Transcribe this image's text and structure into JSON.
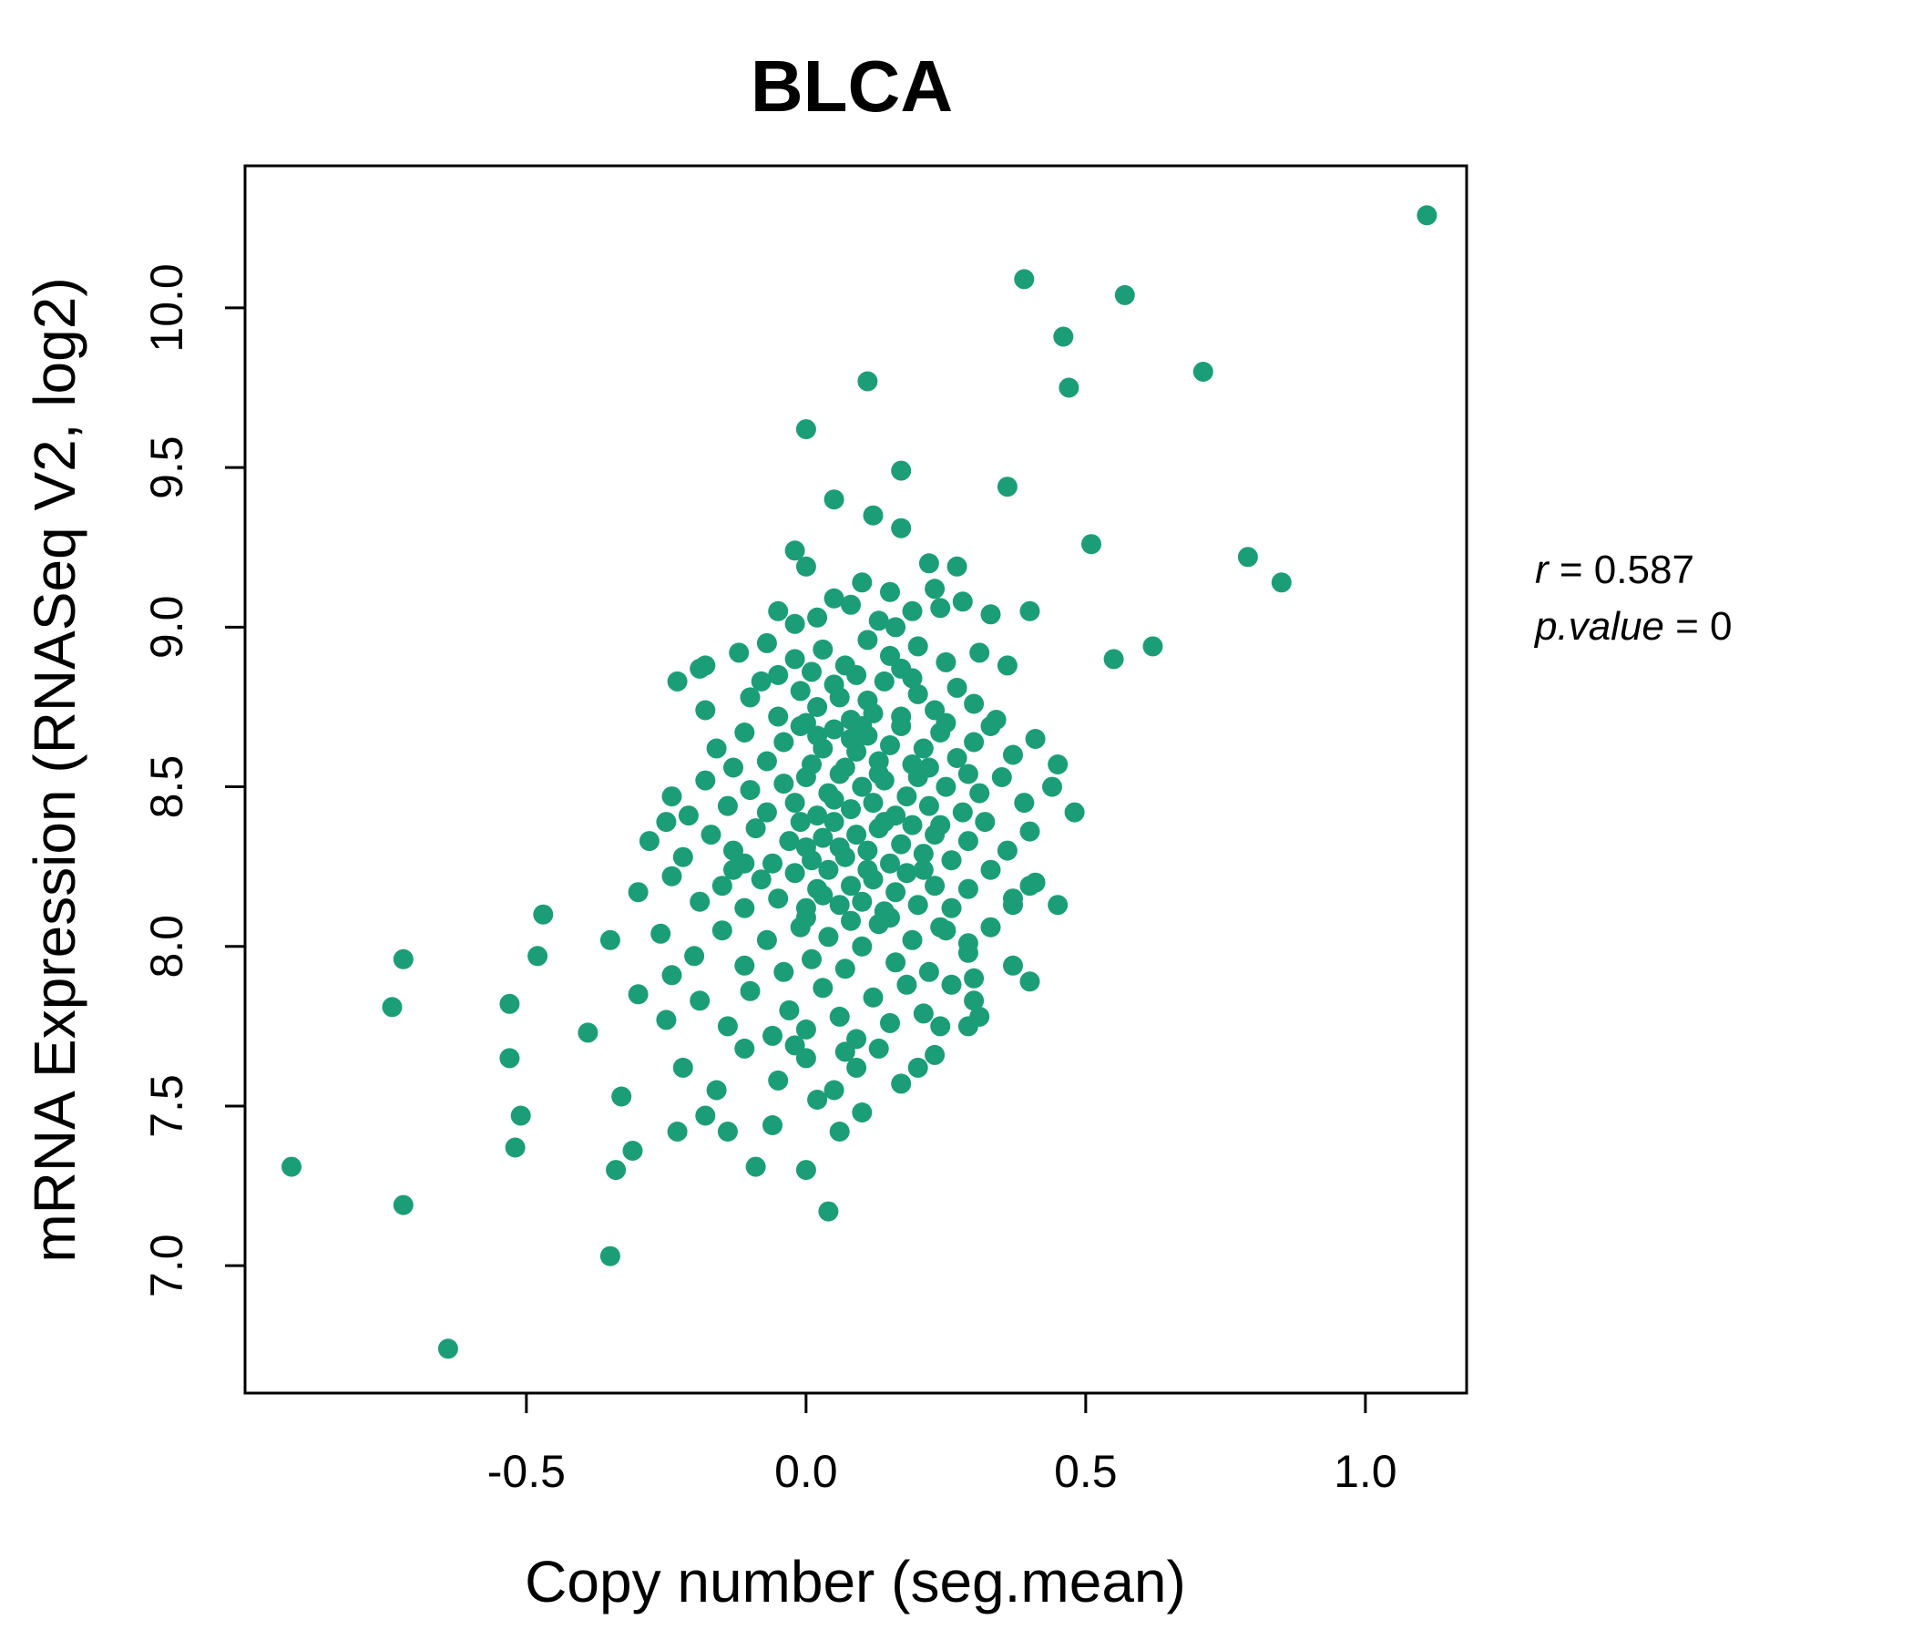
{
  "title": "BLCA",
  "colors": {
    "accent_green": "#1B9E77",
    "axis_black": "#000000",
    "background": "#ffffff"
  },
  "annotation": {
    "r_label": "r",
    "r_rest": " = 0.587",
    "p_label": "p.value",
    "p_rest": " = 0"
  },
  "chart_data": {
    "type": "scatter",
    "title": "BLCA",
    "xlabel": "Copy number (seg.mean)",
    "ylabel": "mRNA Expression (RNASeq V2, log2)",
    "xlim": [
      -1.003,
      1.181
    ],
    "ylim": [
      6.601,
      10.445
    ],
    "xticks": [
      -0.5,
      0.0,
      0.5,
      1.0
    ],
    "xtick_labels": [
      "-0.5",
      "0.0",
      "0.5",
      "1.0"
    ],
    "yticks": [
      7.0,
      7.5,
      8.0,
      8.5,
      9.0,
      9.5,
      10.0
    ],
    "ytick_labels": [
      "7.0",
      "7.5",
      "8.0",
      "8.5",
      "9.0",
      "9.5",
      "10.0"
    ],
    "grid": false,
    "legend": null,
    "correlation_r": 0.587,
    "p_value": 0,
    "marker_color": "#1B9E77",
    "marker_radius_px": 11,
    "points": [
      [
        -0.92,
        7.31
      ],
      [
        -0.72,
        7.19
      ],
      [
        -0.64,
        6.74
      ],
      [
        -0.51,
        7.47
      ],
      [
        -0.52,
        7.37
      ],
      [
        -0.35,
        7.03
      ],
      [
        -0.33,
        7.53
      ],
      [
        -0.31,
        7.36
      ],
      [
        -0.34,
        7.3
      ],
      [
        -0.23,
        7.42
      ],
      [
        -0.14,
        7.42
      ],
      [
        -0.09,
        7.31
      ],
      [
        0.0,
        7.3
      ],
      [
        0.04,
        7.17
      ],
      [
        1.11,
        10.29
      ],
      [
        0.39,
        10.09
      ],
      [
        0.57,
        10.04
      ],
      [
        0.46,
        9.91
      ],
      [
        0.47,
        9.75
      ],
      [
        0.11,
        9.77
      ],
      [
        0.0,
        9.62
      ],
      [
        0.71,
        9.8
      ],
      [
        0.79,
        9.22
      ],
      [
        0.85,
        9.14
      ],
      [
        0.17,
        9.49
      ],
      [
        0.05,
        9.4
      ],
      [
        0.12,
        9.35
      ],
      [
        0.17,
        9.31
      ],
      [
        -0.02,
        9.24
      ],
      [
        0.0,
        9.19
      ],
      [
        0.36,
        9.44
      ],
      [
        0.22,
        9.2
      ],
      [
        0.27,
        9.19
      ],
      [
        0.51,
        9.26
      ],
      [
        0.1,
        9.14
      ],
      [
        0.15,
        9.11
      ],
      [
        0.23,
        9.12
      ],
      [
        0.55,
        8.9
      ],
      [
        0.62,
        8.94
      ],
      [
        0.24,
        7.75
      ],
      [
        0.29,
        7.75
      ],
      [
        0.3,
        7.83
      ],
      [
        -0.39,
        7.73
      ],
      [
        -0.47,
        8.1
      ],
      [
        -0.48,
        7.97
      ],
      [
        -0.53,
        7.82
      ],
      [
        -0.72,
        7.96
      ],
      [
        -0.74,
        7.81
      ],
      [
        0.4,
        8.19
      ],
      [
        0.37,
        8.13
      ],
      [
        0.29,
        8.01
      ],
      [
        0.24,
        8.06
      ],
      [
        0.3,
        7.9
      ],
      [
        0.4,
        7.89
      ],
      [
        -0.05,
        9.05
      ],
      [
        0.02,
        9.03
      ],
      [
        0.08,
        9.07
      ],
      [
        0.13,
        9.02
      ],
      [
        0.19,
        9.05
      ],
      [
        0.28,
        9.08
      ],
      [
        0.33,
        9.04
      ],
      [
        0.24,
        9.06
      ],
      [
        0.05,
        9.09
      ],
      [
        -0.02,
        9.01
      ],
      [
        0.16,
        9.0
      ],
      [
        0.4,
        9.05
      ],
      [
        -0.18,
        8.88
      ],
      [
        -0.12,
        8.92
      ],
      [
        -0.07,
        8.95
      ],
      [
        -0.02,
        8.9
      ],
      [
        0.03,
        8.93
      ],
      [
        0.07,
        8.88
      ],
      [
        0.11,
        8.96
      ],
      [
        0.15,
        8.91
      ],
      [
        0.2,
        8.94
      ],
      [
        0.25,
        8.89
      ],
      [
        0.31,
        8.92
      ],
      [
        0.01,
        8.86
      ],
      [
        0.09,
        8.85
      ],
      [
        0.17,
        8.87
      ],
      [
        -0.05,
        8.85
      ],
      [
        0.36,
        8.88
      ],
      [
        -0.19,
        8.87
      ],
      [
        -0.23,
        8.83
      ],
      [
        -0.18,
        8.74
      ],
      [
        -0.1,
        8.78
      ],
      [
        -0.05,
        8.72
      ],
      [
        -0.01,
        8.8
      ],
      [
        0.02,
        8.75
      ],
      [
        0.05,
        8.82
      ],
      [
        0.08,
        8.71
      ],
      [
        0.11,
        8.77
      ],
      [
        0.14,
        8.83
      ],
      [
        0.17,
        8.72
      ],
      [
        0.2,
        8.79
      ],
      [
        0.23,
        8.74
      ],
      [
        0.27,
        8.81
      ],
      [
        0.3,
        8.76
      ],
      [
        0.34,
        8.71
      ],
      [
        0.06,
        8.78
      ],
      [
        0.0,
        8.7
      ],
      [
        0.12,
        8.73
      ],
      [
        0.19,
        8.84
      ],
      [
        0.25,
        8.7
      ],
      [
        -0.08,
        8.83
      ],
      [
        -0.16,
        8.62
      ],
      [
        -0.11,
        8.67
      ],
      [
        -0.07,
        8.58
      ],
      [
        -0.04,
        8.64
      ],
      [
        -0.01,
        8.69
      ],
      [
        0.01,
        8.57
      ],
      [
        0.03,
        8.62
      ],
      [
        0.05,
        8.68
      ],
      [
        0.07,
        8.56
      ],
      [
        0.09,
        8.61
      ],
      [
        0.11,
        8.66
      ],
      [
        0.13,
        8.58
      ],
      [
        0.15,
        8.63
      ],
      [
        0.17,
        8.69
      ],
      [
        0.19,
        8.57
      ],
      [
        0.21,
        8.62
      ],
      [
        0.24,
        8.67
      ],
      [
        0.27,
        8.59
      ],
      [
        0.3,
        8.64
      ],
      [
        0.33,
        8.69
      ],
      [
        0.37,
        8.6
      ],
      [
        0.41,
        8.65
      ],
      [
        0.02,
        8.66
      ],
      [
        0.1,
        8.69
      ],
      [
        0.22,
        8.56
      ],
      [
        -0.13,
        8.56
      ],
      [
        0.45,
        8.57
      ],
      [
        0.08,
        8.65
      ],
      [
        -0.24,
        8.47
      ],
      [
        -0.18,
        8.52
      ],
      [
        -0.14,
        8.44
      ],
      [
        -0.1,
        8.49
      ],
      [
        -0.07,
        8.42
      ],
      [
        -0.04,
        8.51
      ],
      [
        -0.02,
        8.45
      ],
      [
        0.0,
        8.53
      ],
      [
        0.02,
        8.41
      ],
      [
        0.04,
        8.48
      ],
      [
        0.06,
        8.54
      ],
      [
        0.08,
        8.43
      ],
      [
        0.1,
        8.5
      ],
      [
        0.12,
        8.45
      ],
      [
        0.14,
        8.52
      ],
      [
        0.16,
        8.41
      ],
      [
        0.18,
        8.47
      ],
      [
        0.2,
        8.53
      ],
      [
        0.22,
        8.44
      ],
      [
        0.25,
        8.5
      ],
      [
        0.28,
        8.42
      ],
      [
        0.31,
        8.48
      ],
      [
        0.35,
        8.53
      ],
      [
        0.39,
        8.45
      ],
      [
        0.44,
        8.5
      ],
      [
        0.48,
        8.42
      ],
      [
        0.05,
        8.46
      ],
      [
        0.13,
        8.54
      ],
      [
        0.29,
        8.54
      ],
      [
        -0.21,
        8.41
      ],
      [
        -0.25,
        8.39
      ],
      [
        -0.28,
        8.33
      ],
      [
        -0.22,
        8.28
      ],
      [
        -0.17,
        8.35
      ],
      [
        -0.13,
        8.3
      ],
      [
        -0.09,
        8.37
      ],
      [
        -0.06,
        8.26
      ],
      [
        -0.03,
        8.33
      ],
      [
        -0.01,
        8.39
      ],
      [
        0.01,
        8.27
      ],
      [
        0.03,
        8.34
      ],
      [
        0.05,
        8.39
      ],
      [
        0.07,
        8.28
      ],
      [
        0.09,
        8.35
      ],
      [
        0.11,
        8.3
      ],
      [
        0.13,
        8.37
      ],
      [
        0.15,
        8.26
      ],
      [
        0.17,
        8.32
      ],
      [
        0.19,
        8.38
      ],
      [
        0.21,
        8.29
      ],
      [
        0.23,
        8.35
      ],
      [
        0.26,
        8.27
      ],
      [
        0.29,
        8.33
      ],
      [
        0.32,
        8.39
      ],
      [
        0.36,
        8.3
      ],
      [
        0.4,
        8.36
      ],
      [
        0.06,
        8.31
      ],
      [
        0.14,
        8.39
      ],
      [
        0.0,
        8.31
      ],
      [
        0.24,
        8.38
      ],
      [
        -0.11,
        8.26
      ],
      [
        -0.3,
        8.17
      ],
      [
        -0.24,
        8.22
      ],
      [
        -0.19,
        8.14
      ],
      [
        -0.15,
        8.19
      ],
      [
        -0.11,
        8.12
      ],
      [
        -0.08,
        8.21
      ],
      [
        -0.05,
        8.15
      ],
      [
        -0.02,
        8.23
      ],
      [
        0.0,
        8.12
      ],
      [
        0.02,
        8.18
      ],
      [
        0.04,
        8.24
      ],
      [
        0.06,
        8.13
      ],
      [
        0.08,
        8.19
      ],
      [
        0.1,
        8.14
      ],
      [
        0.12,
        8.21
      ],
      [
        0.14,
        8.11
      ],
      [
        0.16,
        8.17
      ],
      [
        0.18,
        8.23
      ],
      [
        0.2,
        8.13
      ],
      [
        0.23,
        8.19
      ],
      [
        0.26,
        8.12
      ],
      [
        0.29,
        8.18
      ],
      [
        0.33,
        8.24
      ],
      [
        0.37,
        8.15
      ],
      [
        0.41,
        8.2
      ],
      [
        0.45,
        8.13
      ],
      [
        0.03,
        8.16
      ],
      [
        0.11,
        8.24
      ],
      [
        -0.13,
        8.24
      ],
      [
        0.21,
        8.24
      ],
      [
        -0.35,
        8.02
      ],
      [
        -0.26,
        8.04
      ],
      [
        -0.2,
        7.97
      ],
      [
        -0.15,
        8.05
      ],
      [
        -0.11,
        7.94
      ],
      [
        -0.07,
        8.02
      ],
      [
        -0.04,
        7.92
      ],
      [
        -0.01,
        8.06
      ],
      [
        0.01,
        7.96
      ],
      [
        0.04,
        8.03
      ],
      [
        0.07,
        7.93
      ],
      [
        0.1,
        8.0
      ],
      [
        0.13,
        8.07
      ],
      [
        0.16,
        7.95
      ],
      [
        0.19,
        8.02
      ],
      [
        0.22,
        7.92
      ],
      [
        0.25,
        8.05
      ],
      [
        0.29,
        7.98
      ],
      [
        0.33,
        8.06
      ],
      [
        0.37,
        7.94
      ],
      [
        0.08,
        8.08
      ],
      [
        0.0,
        8.09
      ],
      [
        -0.24,
        7.91
      ],
      [
        0.15,
        8.09
      ],
      [
        -0.3,
        7.85
      ],
      [
        -0.25,
        7.77
      ],
      [
        -0.19,
        7.83
      ],
      [
        -0.14,
        7.75
      ],
      [
        -0.1,
        7.86
      ],
      [
        -0.06,
        7.72
      ],
      [
        -0.03,
        7.8
      ],
      [
        0.0,
        7.74
      ],
      [
        0.03,
        7.87
      ],
      [
        0.06,
        7.78
      ],
      [
        0.09,
        7.71
      ],
      [
        0.12,
        7.84
      ],
      [
        0.15,
        7.76
      ],
      [
        0.18,
        7.88
      ],
      [
        0.21,
        7.79
      ],
      [
        0.26,
        7.88
      ],
      [
        0.31,
        7.78
      ],
      [
        -0.22,
        7.62
      ],
      [
        -0.16,
        7.55
      ],
      [
        -0.11,
        7.68
      ],
      [
        -0.05,
        7.58
      ],
      [
        0.0,
        7.65
      ],
      [
        0.05,
        7.55
      ],
      [
        0.09,
        7.62
      ],
      [
        0.13,
        7.68
      ],
      [
        0.17,
        7.57
      ],
      [
        0.02,
        7.52
      ],
      [
        -0.02,
        7.69
      ],
      [
        0.07,
        7.67
      ],
      [
        -0.53,
        7.65
      ],
      [
        -0.06,
        7.44
      ],
      [
        0.06,
        7.42
      ],
      [
        -0.18,
        7.47
      ],
      [
        0.1,
        7.48
      ],
      [
        0.2,
        7.62
      ],
      [
        0.23,
        7.66
      ]
    ]
  }
}
